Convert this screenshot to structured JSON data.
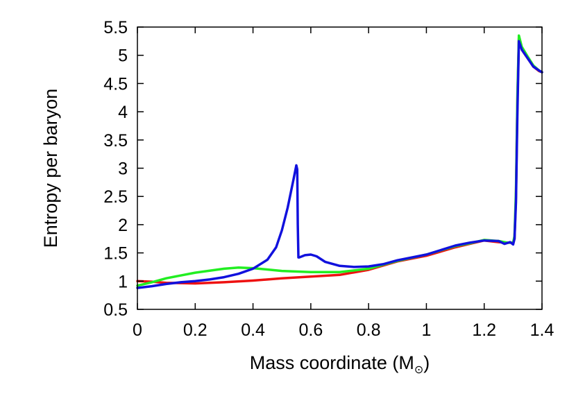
{
  "chart_data": {
    "type": "line",
    "title": "",
    "xlabel": "Mass coordinate (M",
    "xlabel_symbol": "⊙",
    "xlabel_suffix": ")",
    "ylabel": "Entropy per baryon",
    "xlim": [
      0,
      1.4
    ],
    "ylim": [
      0.5,
      5.5
    ],
    "xticks": [
      "0",
      "0.2",
      "0.4",
      "0.6",
      "0.8",
      "1",
      "1.2",
      "1.4"
    ],
    "yticks": [
      "0.5",
      "1",
      "1.5",
      "2",
      "2.5",
      "3",
      "3.5",
      "4",
      "4.5",
      "5",
      "5.5"
    ],
    "grid": false,
    "series": [
      {
        "color": "#ee1111",
        "x": [
          0,
          0.05,
          0.1,
          0.2,
          0.3,
          0.4,
          0.5,
          0.6,
          0.7,
          0.8,
          0.9,
          1.0,
          1.1,
          1.15,
          1.2,
          1.25,
          1.28,
          1.3,
          1.305,
          1.31,
          1.315,
          1.32,
          1.33,
          1.35,
          1.37,
          1.39,
          1.4
        ],
        "y": [
          1.0,
          0.99,
          0.97,
          0.96,
          0.98,
          1.01,
          1.05,
          1.08,
          1.11,
          1.2,
          1.35,
          1.45,
          1.6,
          1.66,
          1.72,
          1.69,
          1.68,
          1.68,
          1.75,
          2.5,
          4.2,
          5.3,
          5.1,
          4.95,
          4.8,
          4.72,
          4.7
        ]
      },
      {
        "color": "#22ee22",
        "x": [
          0,
          0.05,
          0.1,
          0.2,
          0.3,
          0.35,
          0.4,
          0.5,
          0.6,
          0.7,
          0.8,
          0.9,
          1.0,
          1.1,
          1.15,
          1.2,
          1.25,
          1.28,
          1.3,
          1.305,
          1.31,
          1.315,
          1.32,
          1.33,
          1.35,
          1.37,
          1.39,
          1.4
        ],
        "y": [
          0.92,
          0.98,
          1.05,
          1.15,
          1.22,
          1.24,
          1.23,
          1.18,
          1.16,
          1.16,
          1.22,
          1.36,
          1.47,
          1.62,
          1.67,
          1.73,
          1.71,
          1.68,
          1.68,
          1.8,
          2.6,
          4.3,
          5.35,
          5.15,
          4.98,
          4.82,
          4.73,
          4.7
        ]
      },
      {
        "color": "#1111dd",
        "x": [
          0,
          0.05,
          0.1,
          0.15,
          0.2,
          0.25,
          0.3,
          0.35,
          0.4,
          0.45,
          0.48,
          0.5,
          0.52,
          0.54,
          0.55,
          0.553,
          0.555,
          0.557,
          0.56,
          0.58,
          0.6,
          0.62,
          0.65,
          0.7,
          0.75,
          0.8,
          0.85,
          0.9,
          0.95,
          1.0,
          1.05,
          1.1,
          1.15,
          1.2,
          1.25,
          1.27,
          1.29,
          1.3,
          1.305,
          1.31,
          1.315,
          1.32,
          1.33,
          1.35,
          1.37,
          1.39,
          1.4
        ],
        "y": [
          0.88,
          0.91,
          0.95,
          0.98,
          1.0,
          1.03,
          1.07,
          1.13,
          1.22,
          1.38,
          1.6,
          1.9,
          2.3,
          2.8,
          3.05,
          2.98,
          2.0,
          1.42,
          1.42,
          1.46,
          1.47,
          1.44,
          1.34,
          1.27,
          1.25,
          1.26,
          1.3,
          1.37,
          1.42,
          1.47,
          1.55,
          1.63,
          1.68,
          1.72,
          1.71,
          1.66,
          1.69,
          1.65,
          1.75,
          2.4,
          4.0,
          5.25,
          5.1,
          4.95,
          4.8,
          4.73,
          4.7
        ]
      }
    ]
  }
}
